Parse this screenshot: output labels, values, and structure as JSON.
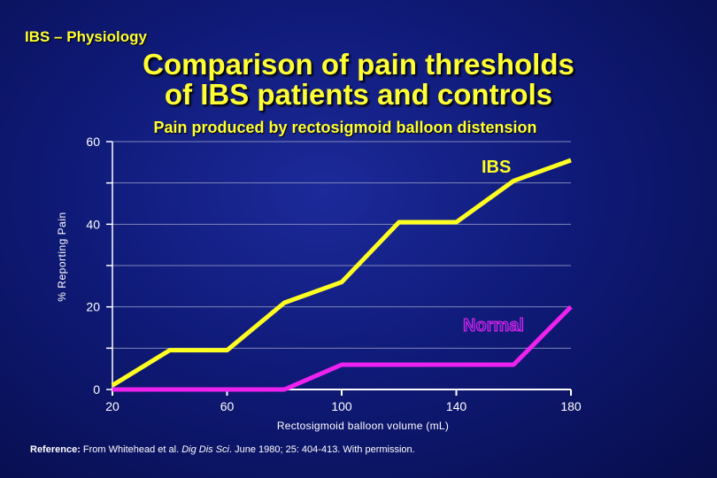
{
  "header": {
    "section": "IBS – Physiology",
    "title_line1": "Comparison of pain thresholds",
    "title_line2": "of IBS patients and controls"
  },
  "reference": {
    "prefix": "Reference:",
    "text1": " From Whitehead et al. ",
    "journal": "Dig Dis Sci",
    "text2": ". June 1980; 25: 404-413. With permission."
  },
  "chart_data": {
    "type": "line",
    "title": "Pain produced by rectosigmoid balloon distension",
    "xlabel": "Rectosigmoid balloon volume (mL)",
    "ylabel": "% Reporting Pain",
    "xlim": [
      20,
      180
    ],
    "ylim": [
      0,
      60
    ],
    "x_ticks": [
      20,
      60,
      100,
      140,
      180
    ],
    "y_ticks_labeled": [
      0,
      20,
      40,
      60
    ],
    "y_ticks_minor": [
      10,
      30,
      50
    ],
    "grid": true,
    "series": [
      {
        "name": "IBS",
        "color": "#ffff22",
        "x": [
          20,
          40,
          60,
          80,
          100,
          120,
          140,
          160,
          180
        ],
        "y": [
          1,
          9.5,
          9.5,
          21,
          26,
          40.5,
          40.5,
          50.5,
          55.5
        ]
      },
      {
        "name": "Normal",
        "color": "#ee22ee",
        "x": [
          20,
          80,
          100,
          160,
          180
        ],
        "y": [
          0,
          0,
          6,
          6,
          20
        ]
      }
    ]
  }
}
